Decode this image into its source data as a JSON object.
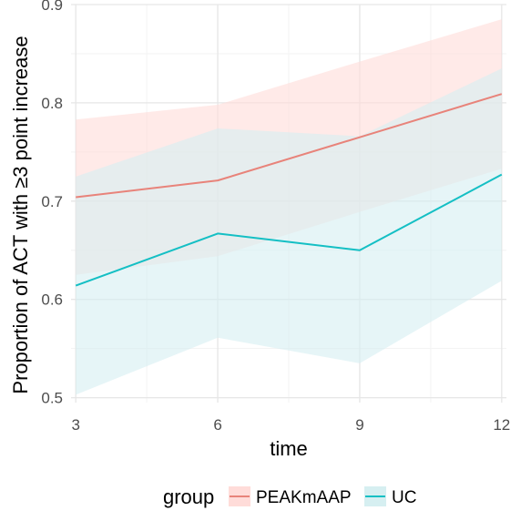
{
  "chart_data": {
    "type": "line",
    "title": "",
    "xlabel": "time",
    "ylabel": "Proportion of ACT with ≥3 point increase",
    "x": [
      3,
      6,
      9,
      12
    ],
    "x_ticks": [
      "3",
      "6",
      "9",
      "12"
    ],
    "y_ticks": [
      "0.5",
      "0.6",
      "0.7",
      "0.8",
      "0.9"
    ],
    "xlim": [
      2.9,
      12.1
    ],
    "ylim": [
      0.495,
      0.9
    ],
    "grid": true,
    "legend_position": "bottom",
    "legend_title": "group",
    "series": [
      {
        "name": "PEAKmAAP",
        "color": "#E8837A",
        "band_color": "#FFDCD9",
        "values": [
          0.704,
          0.721,
          0.765,
          0.809
        ],
        "lower": [
          0.625,
          0.644,
          0.689,
          0.733
        ],
        "upper": [
          0.783,
          0.798,
          0.842,
          0.885
        ]
      },
      {
        "name": "UC",
        "color": "#14BFC4",
        "band_color": "#D6EFF1",
        "values": [
          0.614,
          0.667,
          0.65,
          0.727
        ],
        "lower": [
          0.503,
          0.561,
          0.535,
          0.619
        ],
        "upper": [
          0.725,
          0.774,
          0.766,
          0.835
        ]
      }
    ]
  }
}
